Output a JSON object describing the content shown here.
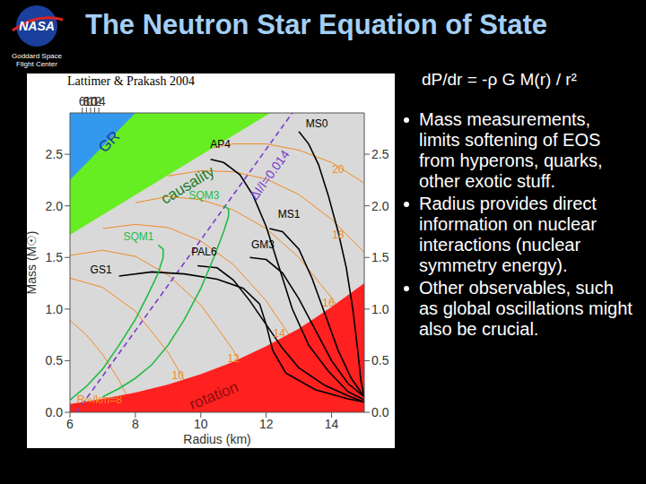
{
  "slide": {
    "logo_text": "NASA",
    "logo_caption": "Goddard Space Flight Center",
    "title": "The Neutron Star Equation of State",
    "equation": "dP/dr = -ρ G M(r) / r²",
    "bullets": [
      "Mass measurements, limits softening of EOS from hyperons, quarks, other exotic stuff.",
      "Radius provides direct information on nuclear interactions (nuclear symmetry energy).",
      "Other observables, such as global oscillations might also be crucial."
    ]
  },
  "chart_data": {
    "type": "line",
    "subtitle": "Lattimer & Prakash 2004",
    "x_label": "Radius (km)",
    "y_label": "Mass (M☉)",
    "xlim": [
      6,
      15
    ],
    "ylim": [
      0,
      2.9
    ],
    "xticks": [
      6,
      8,
      10,
      12,
      14
    ],
    "yticks": [
      {
        "value": 0,
        "label": "0.0"
      },
      0.5,
      {
        "value": 1,
        "label": "1.0"
      },
      1.5,
      {
        "value": 2,
        "label": "2.0"
      },
      2.5
    ],
    "series": [
      {
        "name": "20",
        "type": "line",
        "color": "#f08a24",
        "line_style": "solid",
        "x": [
          10,
          11,
          12,
          13,
          14,
          15
        ],
        "values": [
          2.54,
          2.6,
          2.6,
          2.54,
          2.42,
          2.22
        ],
        "label_pos": [
          14.2,
          2.35
        ]
      },
      {
        "name": "18",
        "type": "line",
        "color": "#f08a24",
        "line_style": "solid",
        "x": [
          9,
          10,
          11,
          12,
          13,
          14,
          15
        ],
        "values": [
          2.29,
          2.34,
          2.33,
          2.26,
          2.11,
          1.87,
          1.55
        ],
        "label_pos": [
          14.2,
          1.72
        ]
      },
      {
        "name": "16",
        "type": "line",
        "color": "#f08a24",
        "line_style": "solid",
        "x": [
          8,
          9,
          10,
          11,
          12,
          13,
          14,
          15
        ],
        "values": [
          2.03,
          2.09,
          2.06,
          1.96,
          1.78,
          1.5,
          1.11,
          0.62
        ],
        "label_pos": [
          13.9,
          1.06
        ]
      },
      {
        "name": "14",
        "type": "line",
        "color": "#f08a24",
        "line_style": "solid",
        "x": [
          7,
          8,
          9,
          10,
          11,
          12,
          13,
          14
        ],
        "values": [
          1.78,
          1.82,
          1.79,
          1.66,
          1.43,
          1.08,
          0.61,
          0
        ],
        "label_pos": [
          12.4,
          0.76
        ]
      },
      {
        "name": "12",
        "type": "line",
        "color": "#f08a24",
        "line_style": "solid",
        "x": [
          6,
          7,
          8,
          9,
          10,
          11,
          12
        ],
        "values": [
          1.52,
          1.57,
          1.51,
          1.33,
          1.04,
          0.6,
          0
        ],
        "label_pos": [
          11.0,
          0.52
        ]
      },
      {
        "name": "10",
        "type": "line",
        "color": "#f08a24",
        "line_style": "solid",
        "x": [
          6,
          7,
          8,
          9,
          9.5,
          10
        ],
        "values": [
          1.3,
          1.21,
          0.98,
          0.58,
          0.31,
          0
        ],
        "label_pos": [
          9.3,
          0.36
        ]
      },
      {
        "name": "R∞/km=8",
        "type": "line",
        "color": "#f08a24",
        "line_style": "solid",
        "x": [
          6,
          6.5,
          7,
          7.5,
          8
        ],
        "values": [
          0.89,
          0.75,
          0.56,
          0.31,
          0
        ],
        "label_pos": [
          6.9,
          0.12
        ]
      },
      {
        "name": "causality",
        "type": "area",
        "color": "#66ee22",
        "x": [
          6,
          12.13
        ],
        "values": [
          1.72,
          2.9
        ],
        "label_pos": [
          9.6,
          2.2
        ]
      },
      {
        "name": "GR",
        "type": "area",
        "color": "#3399ee",
        "x": [
          6,
          8.0
        ],
        "values": [
          2.25,
          2.9
        ],
        "label_pos": [
          7.2,
          2.62
        ]
      },
      {
        "name": "rotation",
        "type": "area",
        "color": "#ff2020",
        "x": [
          6,
          7,
          8,
          9,
          10,
          11,
          12,
          13,
          14,
          15
        ],
        "values": [
          0.08,
          0.13,
          0.19,
          0.27,
          0.37,
          0.49,
          0.64,
          0.81,
          1.02,
          1.25
        ],
        "label_pos": [
          10.4,
          0.16
        ]
      },
      {
        "name": "ΔI/I=0.014",
        "type": "line",
        "color": "#7a3ccc",
        "line_style": "dashed",
        "x": [
          6.2,
          12.8
        ],
        "values": [
          0,
          2.9
        ],
        "label_pos": [
          12.1,
          2.3
        ]
      },
      {
        "name": "MS0",
        "type": "line",
        "color": "#000000",
        "line_style": "solid",
        "x": [
          13.0,
          13.3,
          13.6,
          13.9,
          14.2,
          14.45,
          14.65,
          14.8,
          14.9,
          15.0
        ],
        "values": [
          2.72,
          2.6,
          2.4,
          2.1,
          1.75,
          1.4,
          1.0,
          0.6,
          0.3,
          0.15
        ],
        "label_pos": [
          13.55,
          2.8
        ]
      },
      {
        "name": "AP4",
        "type": "line",
        "color": "#000000",
        "line_style": "solid",
        "x": [
          10.3,
          10.7,
          11.2,
          11.6,
          12.0,
          12.4,
          12.8,
          13.3,
          13.9,
          14.5,
          15.0
        ],
        "values": [
          2.45,
          2.42,
          2.3,
          2.1,
          1.8,
          1.4,
          1.0,
          0.65,
          0.4,
          0.2,
          0.12
        ],
        "label_pos": [
          10.6,
          2.6
        ]
      },
      {
        "name": "MS1",
        "type": "line",
        "color": "#000000",
        "line_style": "solid",
        "x": [
          12.1,
          12.5,
          13.0,
          13.4,
          13.8,
          14.2,
          14.6,
          15.0
        ],
        "values": [
          1.78,
          1.75,
          1.58,
          1.3,
          0.95,
          0.6,
          0.33,
          0.15
        ],
        "label_pos": [
          12.7,
          1.92
        ]
      },
      {
        "name": "GM3",
        "type": "line",
        "color": "#000000",
        "line_style": "solid",
        "x": [
          11.5,
          12.0,
          12.5,
          13.0,
          13.5,
          14.0,
          14.5,
          15.0
        ],
        "values": [
          1.5,
          1.48,
          1.35,
          1.1,
          0.8,
          0.5,
          0.28,
          0.15
        ],
        "label_pos": [
          11.9,
          1.62
        ]
      },
      {
        "name": "PAL6",
        "type": "line",
        "color": "#000000",
        "line_style": "solid",
        "x": [
          9.9,
          10.5,
          11.0,
          11.5,
          12.0,
          12.5,
          13.0,
          13.8,
          14.5,
          15.0
        ],
        "values": [
          1.42,
          1.4,
          1.28,
          1.08,
          0.85,
          0.62,
          0.43,
          0.26,
          0.16,
          0.1
        ],
        "label_pos": [
          10.1,
          1.55
        ]
      },
      {
        "name": "GS1",
        "type": "line",
        "color": "#000000",
        "line_style": "solid",
        "x": [
          7.5,
          8.5,
          9.5,
          10.5,
          11.3,
          11.8,
          12.0,
          12.2,
          12.6,
          13.5,
          14.5,
          15.0
        ],
        "values": [
          1.32,
          1.36,
          1.34,
          1.29,
          1.2,
          1.05,
          0.85,
          0.6,
          0.38,
          0.22,
          0.13,
          0.1
        ],
        "label_pos": [
          6.95,
          1.38
        ]
      },
      {
        "name": "SQM1",
        "type": "line",
        "color": "#22bb44",
        "line_style": "solid",
        "x": [
          6.0,
          6.5,
          7.0,
          7.5,
          8.0,
          8.4,
          8.7,
          8.85,
          8.85,
          8.7
        ],
        "values": [
          0.12,
          0.25,
          0.42,
          0.65,
          0.9,
          1.15,
          1.35,
          1.5,
          1.58,
          1.62
        ],
        "label_pos": [
          8.1,
          1.7
        ]
      },
      {
        "name": "SQM3",
        "type": "line",
        "color": "#22bb44",
        "line_style": "solid",
        "x": [
          7.0,
          7.5,
          8.0,
          8.5,
          9.0,
          9.5,
          10.0,
          10.4,
          10.7,
          10.85,
          10.85,
          10.7
        ],
        "values": [
          0.15,
          0.23,
          0.33,
          0.46,
          0.65,
          0.9,
          1.2,
          1.5,
          1.75,
          1.9,
          1.97,
          2.0
        ],
        "label_pos": [
          10.1,
          2.1
        ]
      }
    ]
  }
}
